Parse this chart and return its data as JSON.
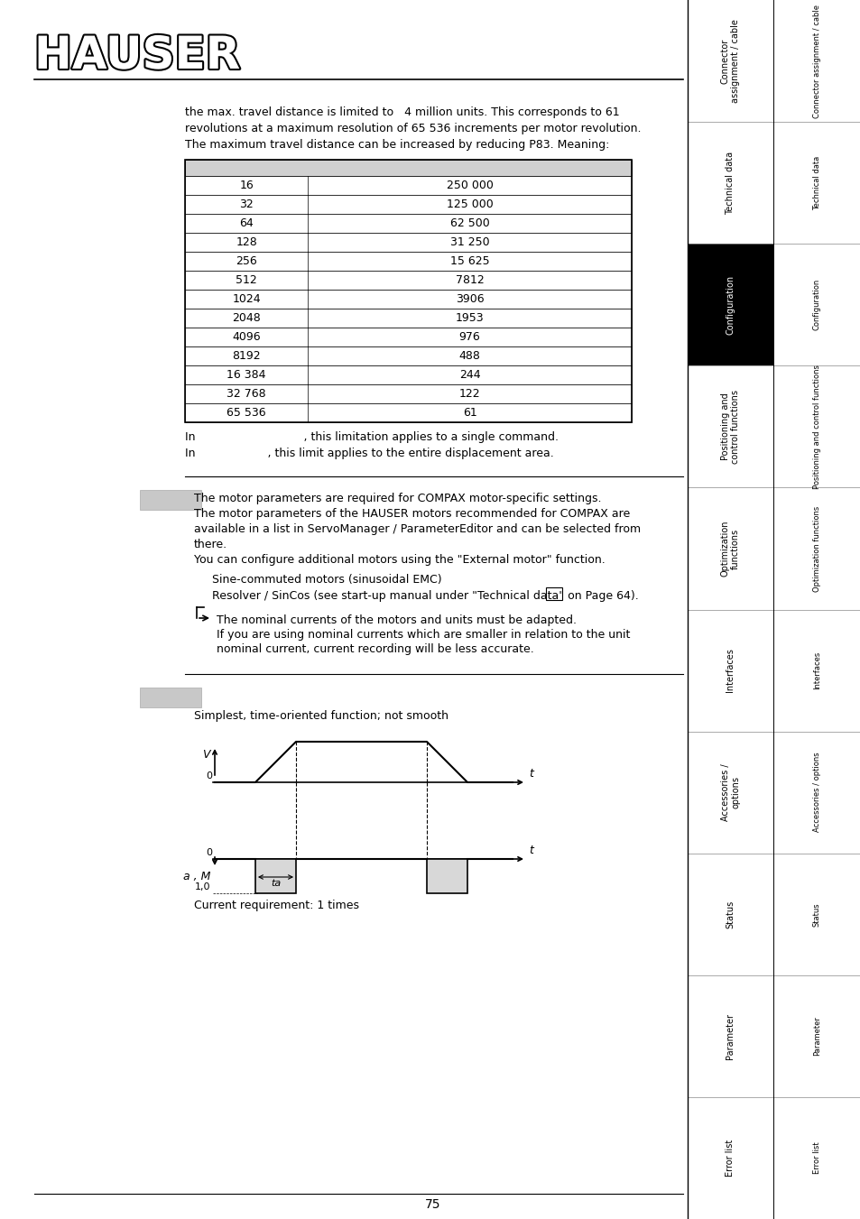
{
  "page_bg": "#ffffff",
  "logo_text": "HAUSER",
  "sidebar_labels": [
    "Connector\nassignment / cable",
    "Technical data",
    "Configuration",
    "Positioning and\ncontrol functions",
    "Optimization\nfunctions",
    "Interfaces",
    "Accessories /\noptions",
    "Status",
    "Parameter",
    "Error list"
  ],
  "sidebar_active": "Configuration",
  "page_number": "75",
  "intro_text": "the max. travel distance is limited to   4 million units. This corresponds to 61\nrevolutions at a maximum resolution of 65 536 increments per motor revolution.\nThe maximum travel distance can be increased by reducing P83. Meaning:",
  "table_col1": [
    "16",
    "32",
    "64",
    "128",
    "256",
    "512",
    "1024",
    "2048",
    "4096",
    "8192",
    "16 384",
    "32 768",
    "65 536"
  ],
  "table_col2": [
    "250 000",
    "125 000",
    "62 500",
    "31 250",
    "15 625",
    "7812",
    "3906",
    "1953",
    "976",
    "488",
    "244",
    "122",
    "61"
  ],
  "table_note1": "In                              , this limitation applies to a single command.",
  "table_note2": "In                    , this limit applies to the entire displacement area.",
  "section2_text_lines": [
    "The motor parameters are required for COMPAX motor-specific settings.",
    "The motor parameters of the HAUSER motors recommended for COMPAX are",
    "available in a list in ServoManager / ParameterEditor and can be selected from",
    "there.",
    "You can configure additional motors using the \"External motor\" function."
  ],
  "section2_sub1": "Sine-commuted motors (sinusoidal EMC)",
  "section2_sub2": "Resolver / SinCos (see start-up manual under \"Technical data\" on Page",
  "section2_page_ref": "64",
  "section2_note_lines": [
    "The nominal currents of the motors and units must be adapted.",
    "If you are using nominal currents which are smaller in relation to the unit",
    "nominal current, current recording will be less accurate."
  ],
  "section3_label": "Simplest, time-oriented function; not smooth",
  "section3_current": "Current requirement: 1 times"
}
